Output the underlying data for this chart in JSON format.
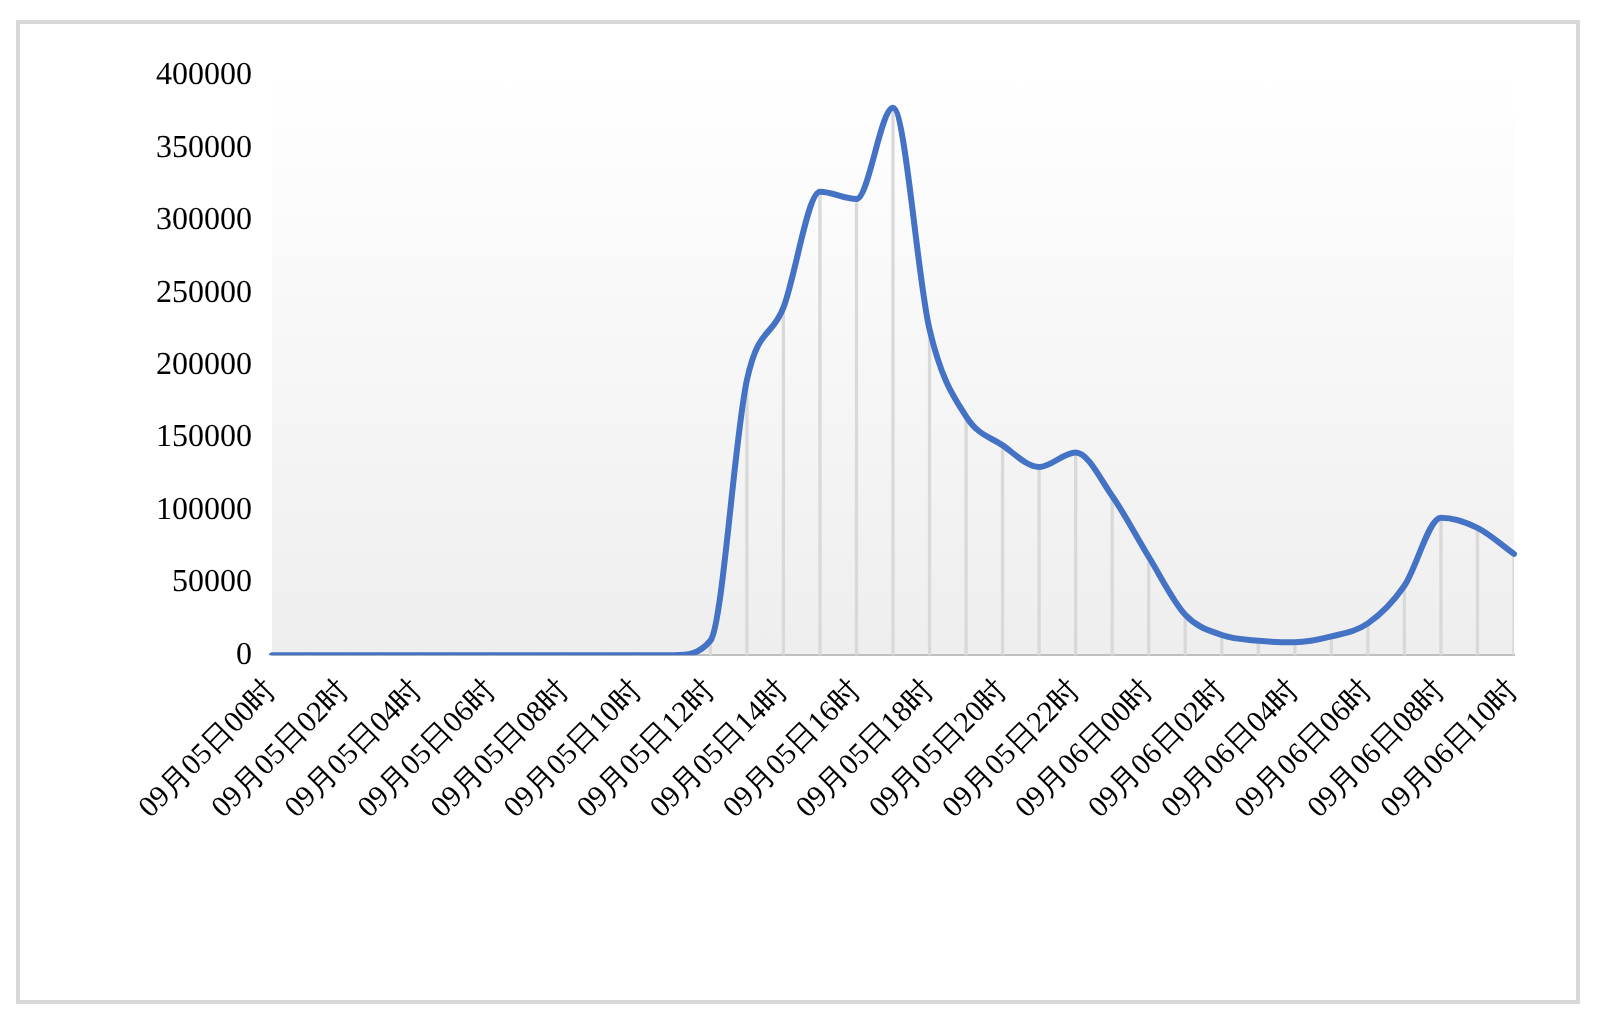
{
  "chart_data": {
    "type": "line",
    "categories": [
      "09月05日00时",
      null,
      "09月05日02时",
      null,
      "09月05日04时",
      null,
      "09月05日06时",
      null,
      "09月05日08时",
      null,
      "09月05日10时",
      null,
      "09月05日12时",
      null,
      "09月05日14时",
      null,
      "09月05日16时",
      null,
      "09月05日18时",
      null,
      "09月05日20时",
      null,
      "09月05日22时",
      null,
      "09月06日00时",
      null,
      "09月06日02时",
      null,
      "09月06日04时",
      null,
      "09月06日06时",
      null,
      "09月06日08时",
      null,
      "09月06日10时"
    ],
    "series": [
      {
        "type": "bar",
        "color": "#d9d9d9",
        "values": [
          0,
          0,
          0,
          0,
          0,
          0,
          0,
          0,
          0,
          0,
          0,
          0,
          10000,
          190000,
          240000,
          320000,
          315000,
          378000,
          225000,
          165000,
          145000,
          130000,
          140000,
          110000,
          68000,
          28000,
          14000,
          10000,
          9000,
          13000,
          22000,
          48000,
          95000,
          88000,
          70000
        ]
      },
      {
        "color": "#4472c4",
        "values": [
          0,
          0,
          0,
          0,
          0,
          0,
          0,
          0,
          0,
          0,
          0,
          0,
          10000,
          190000,
          240000,
          320000,
          315000,
          378000,
          225000,
          165000,
          145000,
          130000,
          140000,
          110000,
          68000,
          28000,
          14000,
          10000,
          9000,
          13000,
          22000,
          48000,
          95000,
          88000,
          70000
        ]
      }
    ],
    "ylim": [
      0,
      400000
    ],
    "yticks": [
      0,
      50000,
      100000,
      150000,
      200000,
      250000,
      300000,
      350000,
      400000
    ],
    "grid": false,
    "legend": false,
    "marker": "none",
    "line_style": "solid"
  }
}
